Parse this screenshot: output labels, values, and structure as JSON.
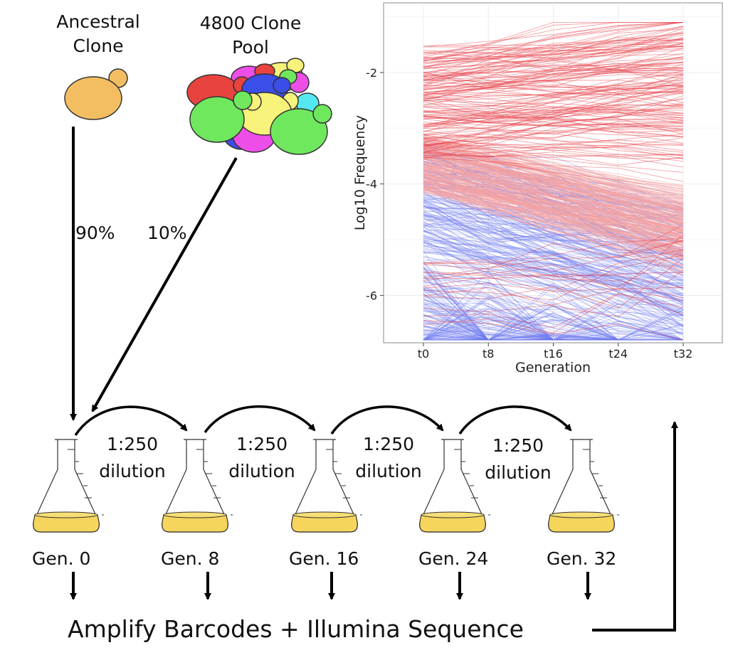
{
  "labels": {
    "ancestral": [
      "Ancestral",
      "Clone"
    ],
    "pool": [
      "4800 Clone",
      "Pool"
    ],
    "pct_ancestral": "90%",
    "pct_pool": "10%",
    "dilution": [
      "1:250",
      "dilution"
    ],
    "generations": [
      "Gen. 0",
      "Gen. 8",
      "Gen. 16",
      "Gen. 24",
      "Gen. 32"
    ],
    "bottom": "Amplify Barcodes + Illumina Sequence"
  },
  "colors": {
    "ancestral_cell": "#f3be62",
    "flask_liquid": "#f6d55c",
    "pool_cells": [
      "#e8433f",
      "#3c4ee8",
      "#6fe85e",
      "#ee4ee8",
      "#f7f27a",
      "#55e8f0",
      "#f7f27a"
    ],
    "high_fitness_line": "#e8424a",
    "neutral_line_red": "#f4a0a0",
    "neutral_line_blue": "#6a78f0"
  },
  "chart_data": {
    "type": "line",
    "xlabel": "Generation",
    "ylabel": "Log10 Frequency",
    "categories": [
      "t0",
      "t8",
      "t16",
      "t24",
      "t32"
    ],
    "yticks": [
      -2,
      -4,
      -6
    ],
    "ylim": [
      -6.85,
      -0.75
    ],
    "grid": true,
    "series_groups": [
      {
        "color": "high_fitness_line",
        "description_visible": false,
        "start_range": [
          -1.6,
          -3.5
        ],
        "end_range": [
          -1.1,
          -4.6
        ],
        "trend": "increasing"
      },
      {
        "color": "neutral_line_red",
        "start_range": [
          -3.2,
          -4.0
        ],
        "end_range": [
          -4.4,
          -5.3
        ],
        "trend": "decreasing"
      },
      {
        "color": "neutral_line_blue",
        "start_range": [
          -3.4,
          -6.8
        ],
        "end_range": [
          -4.8,
          -6.8
        ],
        "trend": "decreasing"
      }
    ]
  }
}
